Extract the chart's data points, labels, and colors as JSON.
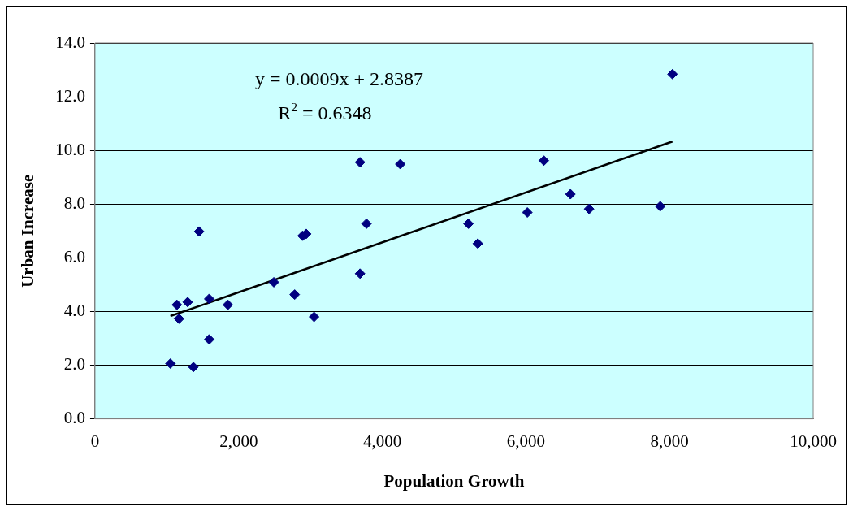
{
  "chart_data": {
    "type": "scatter",
    "xlabel": "Population Growth",
    "ylabel": "Urban Increase",
    "xlim": [
      0,
      10000
    ],
    "xticks": [
      0,
      {
        "value": 2000,
        "label": "2,000"
      },
      {
        "value": 4000,
        "label": "4,000"
      },
      {
        "value": 6000,
        "label": "6,000"
      },
      {
        "value": 8000,
        "label": "8,000"
      },
      {
        "value": 10000,
        "label": "10,000"
      }
    ],
    "ylim": [
      0,
      14
    ],
    "yticks": [
      {
        "value": 0,
        "label": "0.0"
      },
      {
        "value": 2,
        "label": "2.0"
      },
      {
        "value": 4,
        "label": "4.0"
      },
      {
        "value": 6,
        "label": "6.0"
      },
      {
        "value": 8,
        "label": "8.0"
      },
      {
        "value": 10,
        "label": "10.0"
      },
      {
        "value": 12,
        "label": "12.0"
      },
      {
        "value": 14,
        "label": "14.0"
      }
    ],
    "grid": "y",
    "legend": false,
    "marker": "diamond",
    "annotations": [
      "y = 0.0009x + 2.8387",
      "R$^{2}$ = 0.6348"
    ],
    "series": [
      {
        "color": "#000080",
        "x": [
          1050,
          1140,
          1170,
          1290,
          1370,
          1450,
          1590,
          1590,
          1850,
          2490,
          2780,
          2890,
          2940,
          3050,
          3690,
          3690,
          3780,
          4250,
          5200,
          5330,
          6020,
          6250,
          6620,
          6880,
          7870,
          8040
        ],
        "values": [
          2.06,
          4.25,
          3.73,
          4.35,
          1.93,
          6.98,
          4.47,
          2.96,
          4.25,
          5.09,
          4.63,
          6.82,
          6.89,
          3.8,
          9.56,
          5.41,
          7.27,
          9.49,
          7.27,
          6.53,
          7.69,
          9.62,
          8.37,
          7.82,
          7.92,
          12.84
        ]
      },
      {
        "type": "line",
        "marker": "none",
        "color": "#000000",
        "x": [
          1050,
          8040
        ],
        "values": [
          3.83,
          10.33
        ]
      }
    ]
  }
}
